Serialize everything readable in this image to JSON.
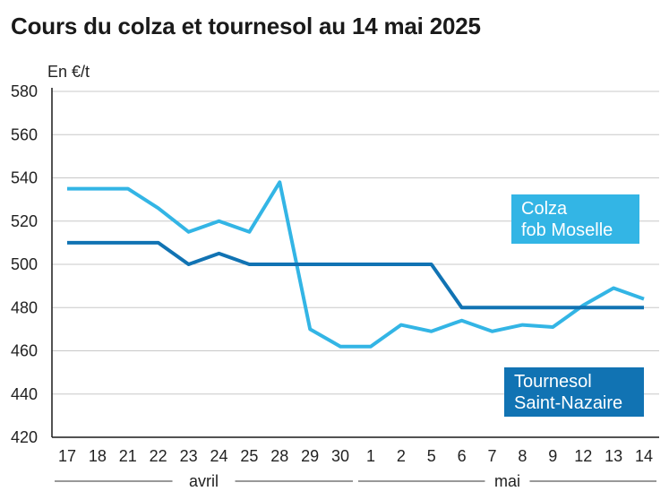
{
  "title": "Cours du colza et tournesol au 14 mai 2025",
  "chart_data": {
    "type": "line",
    "title": "Cours du colza et tournesol au 14 mai 2025",
    "ylabel": "En €/t",
    "xlabel": "",
    "ylim": [
      420,
      580
    ],
    "yticks": [
      420,
      440,
      460,
      480,
      500,
      520,
      540,
      560,
      580
    ],
    "grid": true,
    "categories": [
      "17",
      "18",
      "21",
      "22",
      "23",
      "24",
      "25",
      "28",
      "29",
      "30",
      "1",
      "2",
      "5",
      "6",
      "7",
      "8",
      "9",
      "12",
      "13",
      "14"
    ],
    "months": [
      {
        "label": "avril",
        "from": 0,
        "to": 9
      },
      {
        "label": "mai",
        "from": 10,
        "to": 19
      }
    ],
    "series": [
      {
        "name": "Colza fob Moselle",
        "label_lines": [
          "Colza",
          "fob Moselle"
        ],
        "color": "#33b5e5",
        "values": [
          535,
          535,
          535,
          526,
          515,
          520,
          515,
          538,
          470,
          462,
          462,
          472,
          469,
          474,
          469,
          472,
          471,
          481,
          489,
          484
        ]
      },
      {
        "name": "Tournesol Saint-Nazaire",
        "label_lines": [
          "Tournesol",
          "Saint-Nazaire"
        ],
        "color": "#1173b3",
        "values": [
          510,
          510,
          510,
          510,
          500,
          505,
          500,
          500,
          500,
          500,
          500,
          500,
          500,
          480,
          480,
          480,
          480,
          480,
          480,
          480
        ]
      }
    ]
  }
}
